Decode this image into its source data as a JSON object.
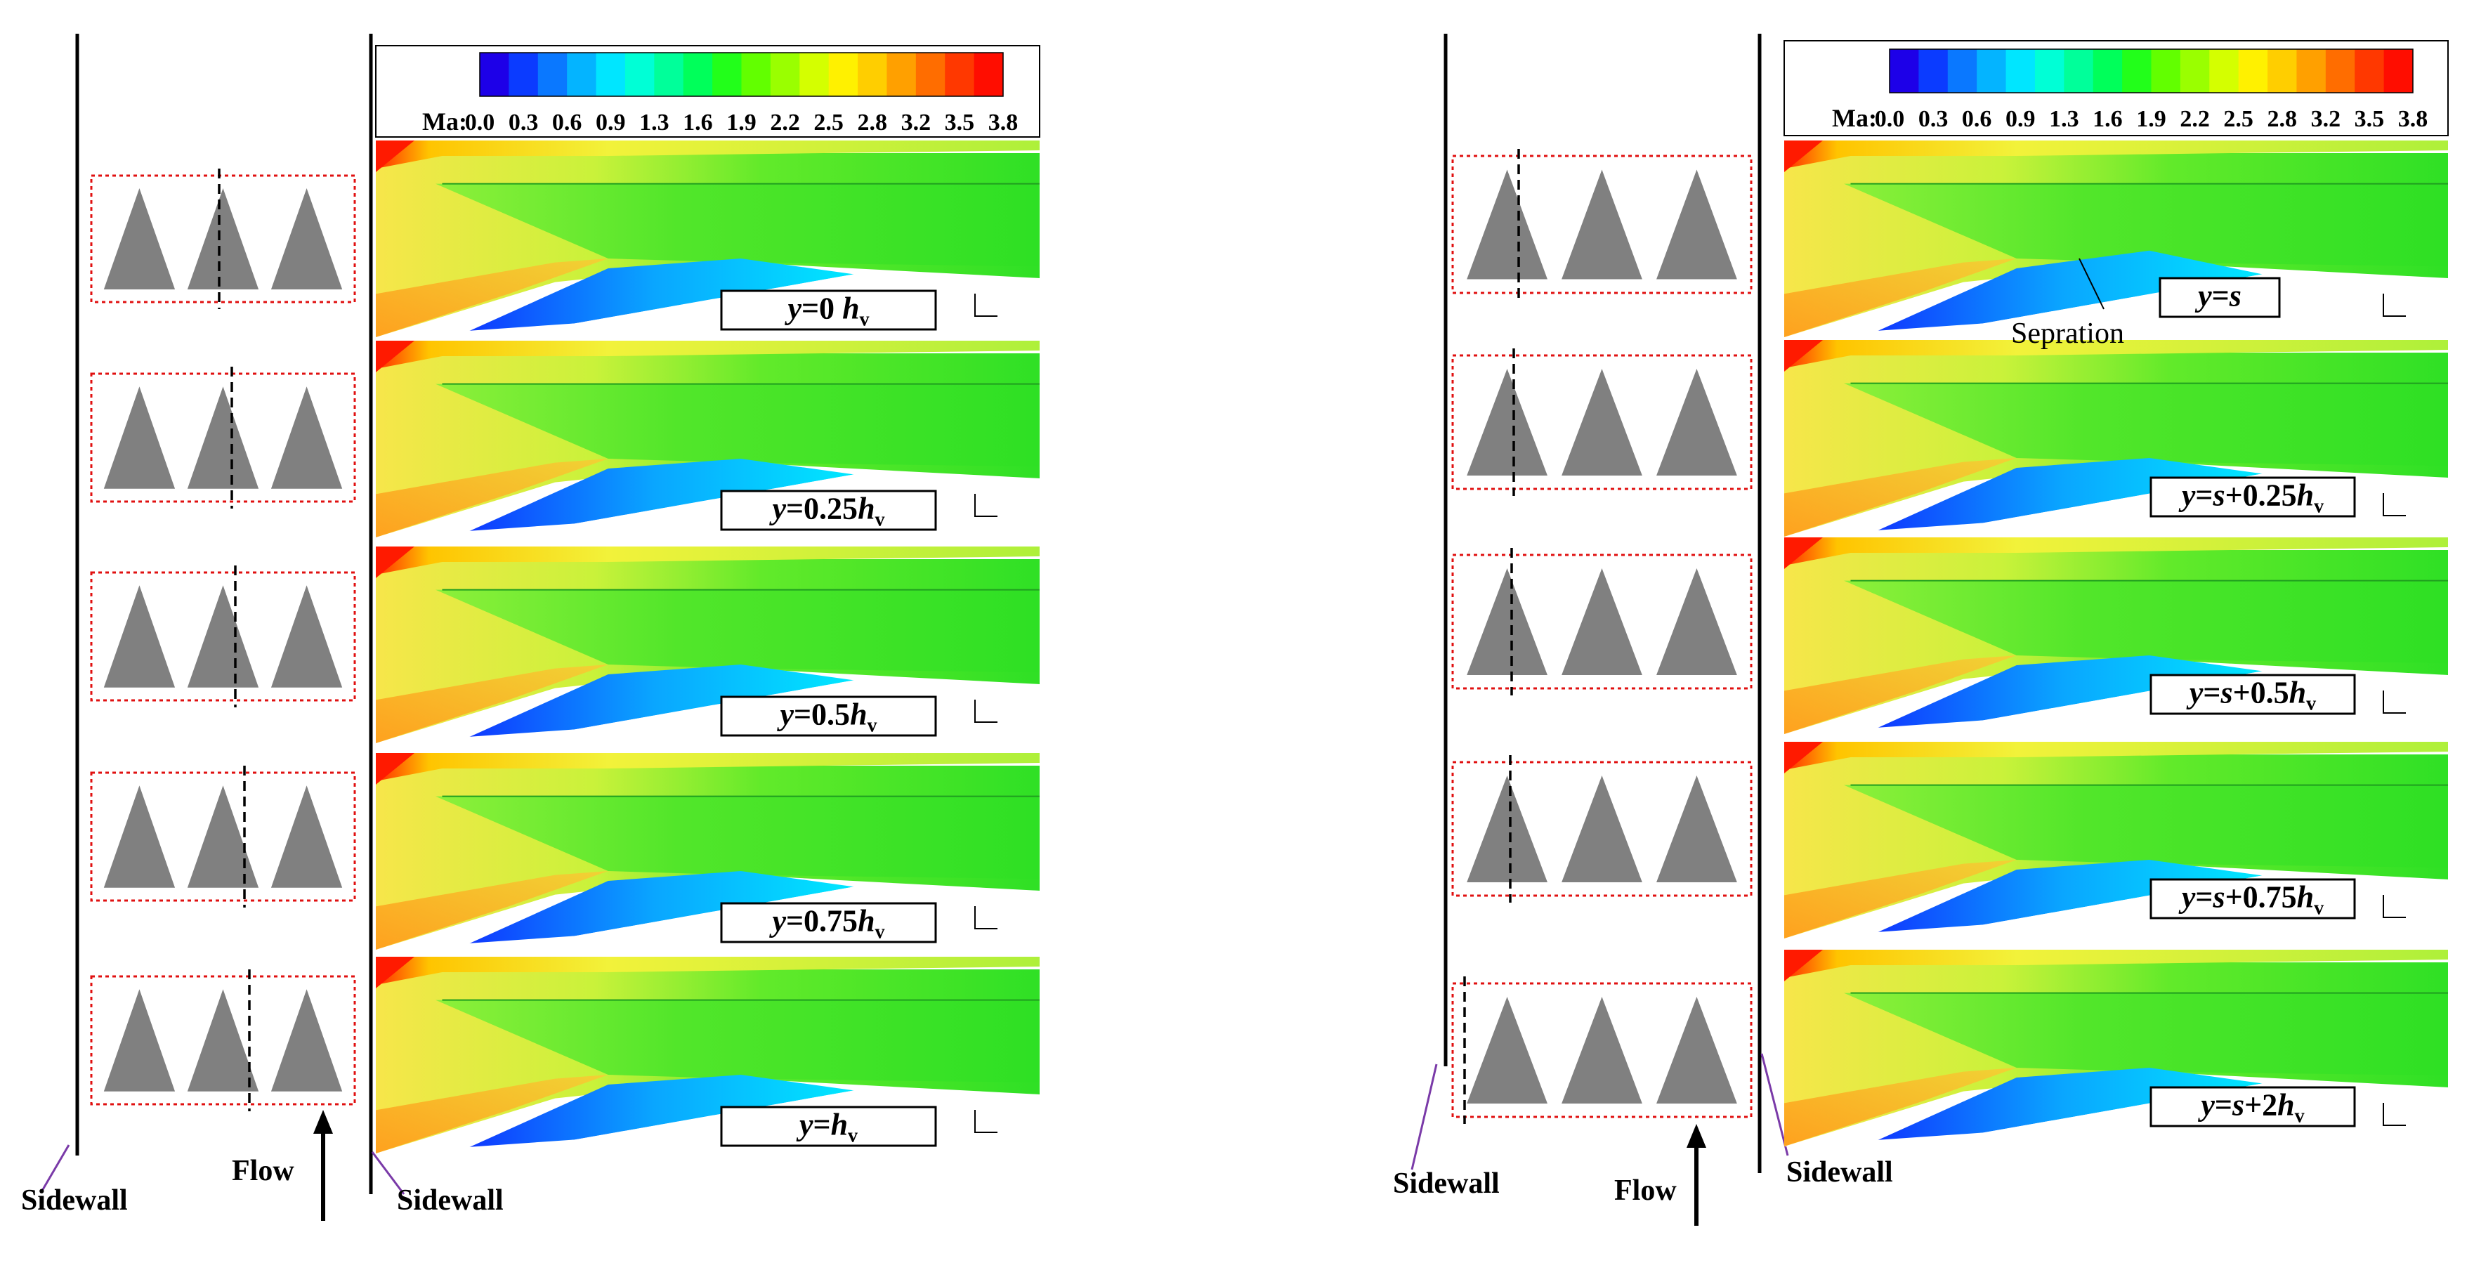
{
  "colorbar": {
    "label": "Ma:",
    "ticks": [
      "0.0",
      "0.3",
      "0.6",
      "0.9",
      "1.3",
      "1.6",
      "1.9",
      "2.2",
      "2.5",
      "2.8",
      "3.2",
      "3.5",
      "3.8"
    ],
    "colors": [
      "#1d00e8",
      "#0b3bff",
      "#0a78ff",
      "#04b4ff",
      "#00e6ff",
      "#00ffd6",
      "#00ff9a",
      "#00ff5a",
      "#22ff1a",
      "#62ff00",
      "#9aff00",
      "#d4ff00",
      "#fff100",
      "#ffce00",
      "#ffa000",
      "#ff6d00",
      "#ff3800",
      "#ff0d00"
    ]
  },
  "left_panel": {
    "sidewall_left": "Sidewall",
    "sidewall_right": "Sidewall",
    "flow": "Flow",
    "slices": [
      {
        "pre": "y",
        "mid": "=0 ",
        "hv": "h",
        "sub": "v"
      },
      {
        "pre": "y",
        "mid": "=0.25",
        "hv": "h",
        "sub": "v"
      },
      {
        "pre": "y",
        "mid": "=0.5",
        "hv": "h",
        "sub": "v"
      },
      {
        "pre": "y",
        "mid": "=0.75",
        "hv": "h",
        "sub": "v"
      },
      {
        "pre": "y",
        "mid": "=",
        "hv": "h",
        "sub": "v"
      }
    ]
  },
  "right_panel": {
    "sidewall_left": "Sidewall",
    "sidewall_right": "Sidewall",
    "flow": "Flow",
    "separation": "Sepration",
    "slices": [
      {
        "pre": "y",
        "mid": "=",
        "s": "s",
        "rest": "",
        "hv": "",
        "sub": ""
      },
      {
        "pre": "y",
        "mid": "=",
        "s": "s",
        "rest": "+0.25",
        "hv": "h",
        "sub": "v"
      },
      {
        "pre": "y",
        "mid": "=",
        "s": "s",
        "rest": "+0.5",
        "hv": "h",
        "sub": "v"
      },
      {
        "pre": "y",
        "mid": "=",
        "s": "s",
        "rest": "+0.75",
        "hv": "h",
        "sub": "v"
      },
      {
        "pre": "y",
        "mid": "=",
        "s": "s",
        "rest": "+2",
        "hv": "h",
        "sub": "v"
      }
    ]
  }
}
